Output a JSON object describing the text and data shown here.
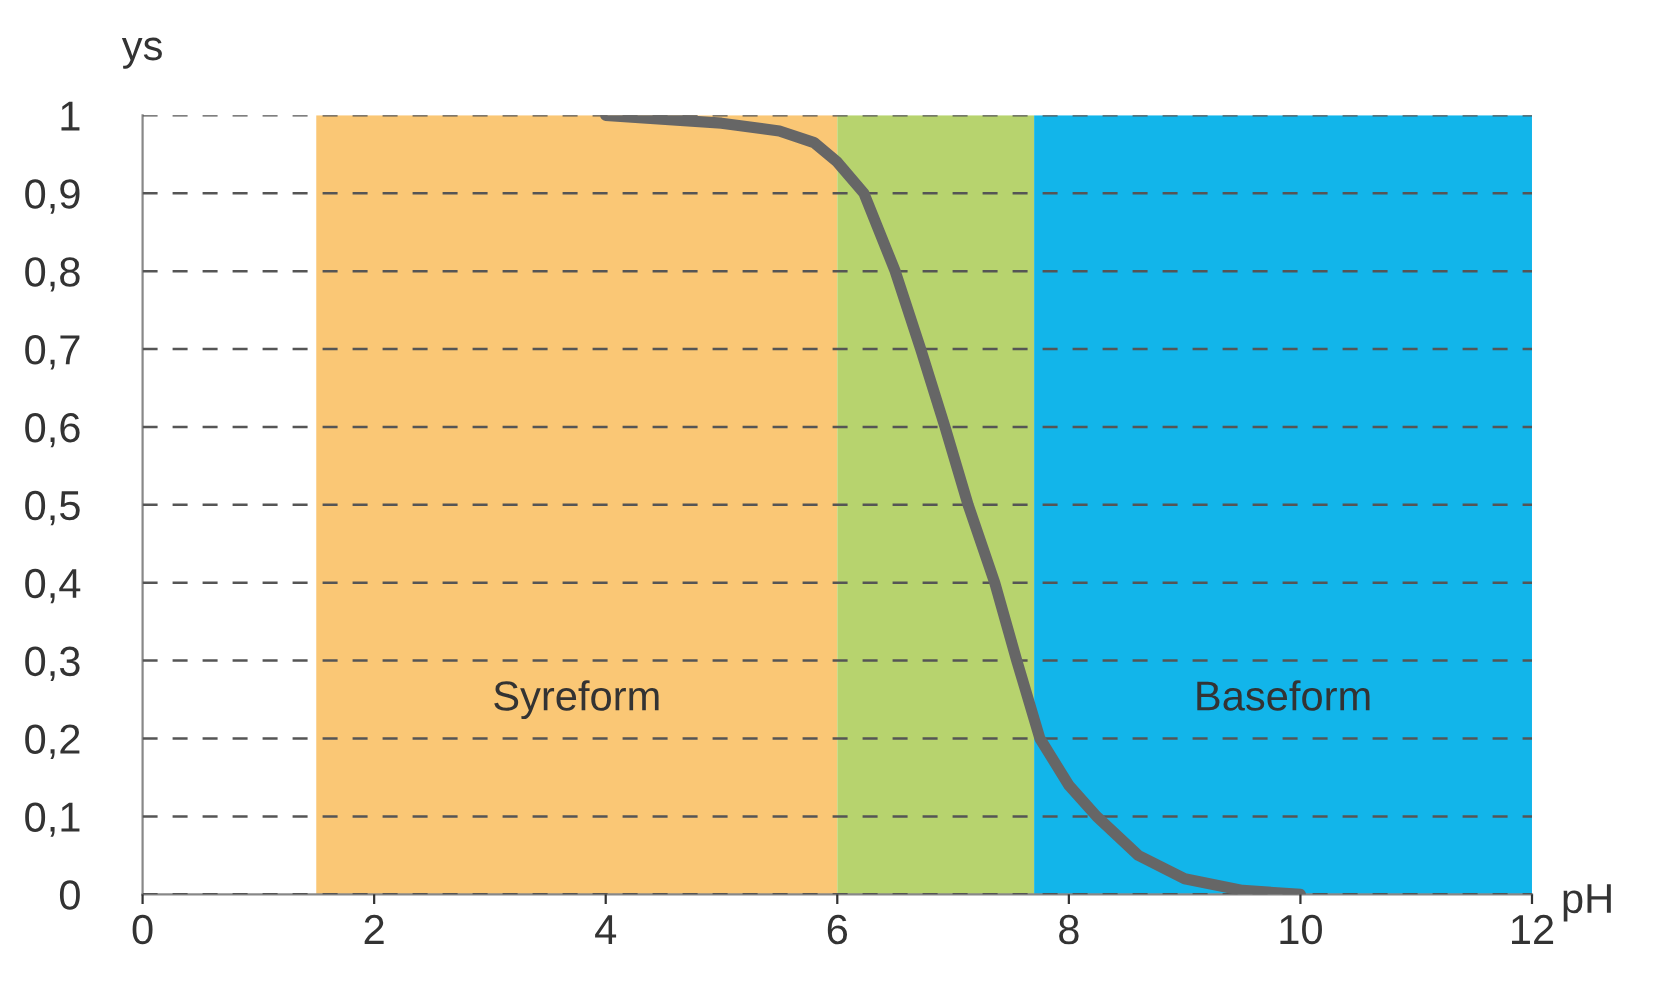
{
  "chart_data": {
    "type": "line",
    "xlabel": "pH",
    "ylabel": "ys",
    "series": [
      {
        "color": "#666666",
        "x": [
          4,
          5,
          5.5,
          5.8,
          6,
          6.23,
          6.5,
          6.72,
          6.93,
          7.13,
          7.36,
          7.55,
          7.75,
          8,
          8.24,
          8.6,
          9,
          9.5,
          10
        ],
        "values": [
          1,
          0.99,
          0.98,
          0.965,
          0.94,
          0.9,
          0.8,
          0.7,
          0.6,
          0.5,
          0.4,
          0.3,
          0.2,
          0.14,
          0.1,
          0.05,
          0.02,
          0.005,
          0
        ]
      }
    ],
    "xlim": [
      0,
      12
    ],
    "xticks": [
      0,
      2,
      4,
      6,
      8,
      10,
      12
    ],
    "ylim": [
      0,
      1
    ],
    "yticks": [
      0,
      {
        "value": 0.1,
        "label": "0,1"
      },
      {
        "value": 0.2,
        "label": "0,2"
      },
      {
        "value": 0.3,
        "label": "0,3"
      },
      {
        "value": 0.4,
        "label": "0,4"
      },
      {
        "value": 0.5,
        "label": "0,5"
      },
      {
        "value": 0.6,
        "label": "0,6"
      },
      {
        "value": 0.7,
        "label": "0,7"
      },
      {
        "value": 0.8,
        "label": "0,8"
      },
      {
        "value": 0.9,
        "label": "0,9"
      },
      1
    ],
    "bands": [
      {
        "axis": "x",
        "from": 1.5,
        "to": 6,
        "label": "Syreform",
        "color": "#fac775"
      },
      {
        "axis": "x",
        "from": 6,
        "to": 7.7,
        "color": "#b7d36e"
      },
      {
        "axis": "x",
        "from": 7.7,
        "to": 12,
        "label": "Baseform",
        "color": "#12b5ea"
      }
    ],
    "grid": "y",
    "line_style": "solid",
    "marker": "none"
  }
}
